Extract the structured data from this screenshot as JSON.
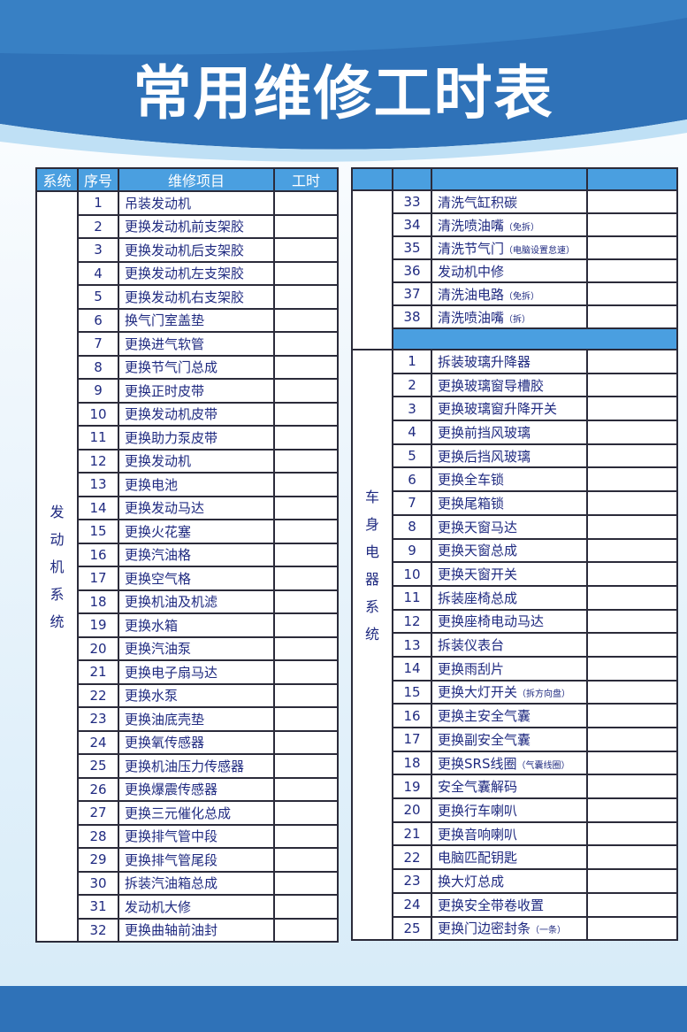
{
  "title": "常用维修工时表",
  "colors": {
    "banner": "#2f72b8",
    "header": "#4a9fe0",
    "text": "#1f2a80"
  },
  "headers": {
    "system": "系统",
    "no": "序号",
    "item": "维修项目",
    "hours": "工时"
  },
  "engine": {
    "system": "发动机系统",
    "rows": [
      {
        "no": "1",
        "item": "吊装发动机"
      },
      {
        "no": "2",
        "item": "更换发动机前支架胶"
      },
      {
        "no": "3",
        "item": "更换发动机后支架胶"
      },
      {
        "no": "4",
        "item": "更换发动机左支架胶"
      },
      {
        "no": "5",
        "item": "更换发动机右支架胶"
      },
      {
        "no": "6",
        "item": "换气门室盖垫"
      },
      {
        "no": "7",
        "item": "更换进气软管"
      },
      {
        "no": "8",
        "item": "更换节气门总成"
      },
      {
        "no": "9",
        "item": "更换正时皮带"
      },
      {
        "no": "10",
        "item": "更换发动机皮带"
      },
      {
        "no": "11",
        "item": "更换助力泵皮带"
      },
      {
        "no": "12",
        "item": "更换发动机"
      },
      {
        "no": "13",
        "item": "更换电池"
      },
      {
        "no": "14",
        "item": "更换发动马达"
      },
      {
        "no": "15",
        "item": "更换火花塞"
      },
      {
        "no": "16",
        "item": "更换汽油格"
      },
      {
        "no": "17",
        "item": "更换空气格"
      },
      {
        "no": "18",
        "item": "更换机油及机滤"
      },
      {
        "no": "19",
        "item": "更换水箱"
      },
      {
        "no": "20",
        "item": "更换汽油泵"
      },
      {
        "no": "21",
        "item": "更换电子扇马达"
      },
      {
        "no": "22",
        "item": "更换水泵"
      },
      {
        "no": "23",
        "item": "更换油底壳垫"
      },
      {
        "no": "24",
        "item": "更换氧传感器"
      },
      {
        "no": "25",
        "item": "更换机油压力传感器"
      },
      {
        "no": "26",
        "item": "更换爆震传感器"
      },
      {
        "no": "27",
        "item": "更换三元催化总成"
      },
      {
        "no": "28",
        "item": "更换排气管中段"
      },
      {
        "no": "29",
        "item": "更换排气管尾段"
      },
      {
        "no": "30",
        "item": "拆装汽油箱总成"
      },
      {
        "no": "31",
        "item": "发动机大修"
      },
      {
        "no": "32",
        "item": "更换曲轴前油封"
      }
    ],
    "continued": [
      {
        "no": "33",
        "item": "清洗气缸积碳"
      },
      {
        "no": "34",
        "item": "清洗喷油嘴",
        "note": "（免拆）"
      },
      {
        "no": "35",
        "item": "清洗节气门",
        "note": "（电脑设置怠速）"
      },
      {
        "no": "36",
        "item": "发动机中修"
      },
      {
        "no": "37",
        "item": "清洗油电路",
        "note": "（免拆）"
      },
      {
        "no": "38",
        "item": "清洗喷油嘴",
        "note": "（拆）"
      }
    ]
  },
  "body": {
    "system": "车身电器系统",
    "rows": [
      {
        "no": "1",
        "item": "拆装玻璃升降器"
      },
      {
        "no": "2",
        "item": "更换玻璃窗导槽胶"
      },
      {
        "no": "3",
        "item": "更换玻璃窗升降开关"
      },
      {
        "no": "4",
        "item": "更换前挡风玻璃"
      },
      {
        "no": "5",
        "item": "更换后挡风玻璃"
      },
      {
        "no": "6",
        "item": "更换全车锁"
      },
      {
        "no": "7",
        "item": "更换尾箱锁"
      },
      {
        "no": "8",
        "item": "更换天窗马达"
      },
      {
        "no": "9",
        "item": "更换天窗总成"
      },
      {
        "no": "10",
        "item": "更换天窗开关"
      },
      {
        "no": "11",
        "item": "拆装座椅总成"
      },
      {
        "no": "12",
        "item": "更换座椅电动马达"
      },
      {
        "no": "13",
        "item": "拆装仪表台"
      },
      {
        "no": "14",
        "item": "更换雨刮片"
      },
      {
        "no": "15",
        "item": "更换大灯开关",
        "note": "（拆方向盘）"
      },
      {
        "no": "16",
        "item": "更换主安全气囊"
      },
      {
        "no": "17",
        "item": "更换副安全气囊"
      },
      {
        "no": "18",
        "item": "更换SRS线圈",
        "note": "（气囊线圈）"
      },
      {
        "no": "19",
        "item": "安全气囊解码"
      },
      {
        "no": "20",
        "item": "更换行车喇叭"
      },
      {
        "no": "21",
        "item": "更换音响喇叭"
      },
      {
        "no": "22",
        "item": "电脑匹配钥匙"
      },
      {
        "no": "23",
        "item": "换大灯总成"
      },
      {
        "no": "24",
        "item": "更换安全带卷收置"
      },
      {
        "no": "25",
        "item": "更换门边密封条",
        "note": "（一条）"
      }
    ]
  }
}
